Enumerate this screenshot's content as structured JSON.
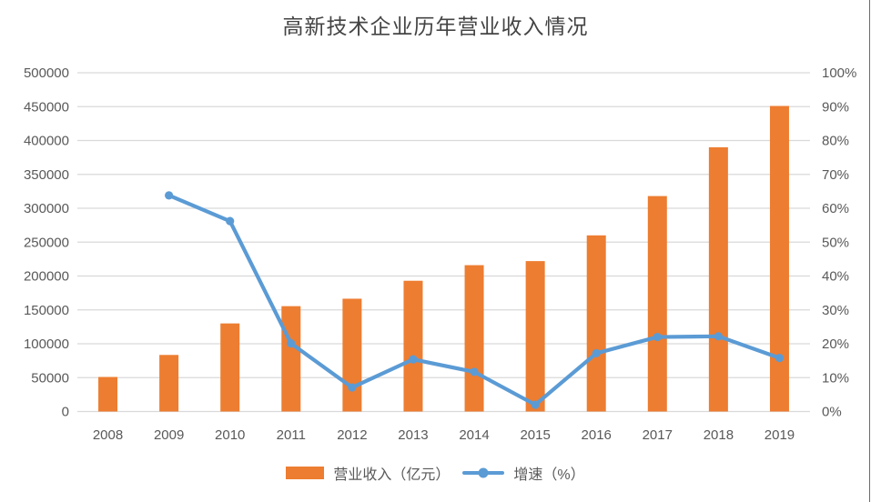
{
  "page": {
    "title": "高新技术企业历年营业收入情况"
  },
  "chart_data": {
    "type": "combo-bar-line",
    "title": "高新技术企业历年营业收入情况",
    "categories": [
      "2008",
      "2009",
      "2010",
      "2011",
      "2012",
      "2013",
      "2014",
      "2015",
      "2016",
      "2017",
      "2018",
      "2019"
    ],
    "series": [
      {
        "name": "营业收入（亿元）",
        "type": "bar",
        "axis": "left",
        "color": "#ED7D31",
        "values": [
          51000,
          83500,
          130000,
          155500,
          166500,
          193000,
          216000,
          222000,
          260000,
          318000,
          390000,
          451000
        ]
      },
      {
        "name": "增速（%）",
        "type": "line",
        "axis": "right",
        "color": "#5B9BD5",
        "values": [
          null,
          63.8,
          56.2,
          20.1,
          7.1,
          15.4,
          11.7,
          2.0,
          17.2,
          22.0,
          22.2,
          15.8
        ]
      }
    ],
    "left_axis": {
      "min": 0,
      "max": 500000,
      "step": 50000,
      "tick_labels": [
        "0",
        "50000",
        "100000",
        "150000",
        "200000",
        "250000",
        "300000",
        "350000",
        "400000",
        "450000",
        "500000"
      ]
    },
    "right_axis": {
      "min": 0,
      "max": 100,
      "step": 10,
      "tick_labels": [
        "0%",
        "10%",
        "20%",
        "30%",
        "40%",
        "50%",
        "60%",
        "70%",
        "80%",
        "90%",
        "100%"
      ]
    },
    "grid": true,
    "legend_position": "bottom",
    "xlabel": "",
    "ylabel": ""
  },
  "colors": {
    "bar": "#ED7D31",
    "line": "#5B9BD5",
    "gridline": "#D9D9D9",
    "axis_text": "#595959",
    "title_text": "#444444"
  }
}
